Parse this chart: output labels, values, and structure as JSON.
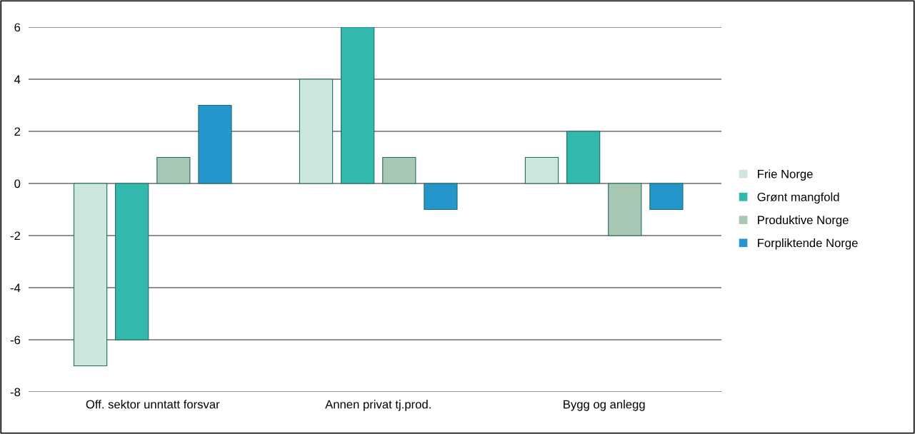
{
  "chart_data": {
    "type": "bar",
    "categories": [
      "Off. sektor unntatt forsvar",
      "Annen privat tj.prod.",
      "Bygg og anlegg"
    ],
    "series": [
      {
        "name": "Frie Norge",
        "color": "#cce8dc",
        "values": [
          -7,
          4,
          1
        ]
      },
      {
        "name": "Grønt mangfold",
        "color": "#33b8ae",
        "values": [
          -6,
          6,
          2
        ]
      },
      {
        "name": "Produktive Norge",
        "color": "#a8c8b4",
        "values": [
          1,
          1,
          -2
        ]
      },
      {
        "name": "Forpliktende Norge",
        "color": "#2596cc",
        "values": [
          3,
          -1,
          -1
        ]
      }
    ],
    "ylim": [
      -8,
      6
    ],
    "yticks": [
      {
        "value": -8,
        "label": "-8"
      },
      {
        "value": -6,
        "label": "-6"
      },
      {
        "value": -4,
        "label": "-4"
      },
      {
        "value": -2,
        "label": "-2"
      },
      0,
      2,
      4,
      6
    ],
    "grid": "y",
    "legend": "right"
  }
}
